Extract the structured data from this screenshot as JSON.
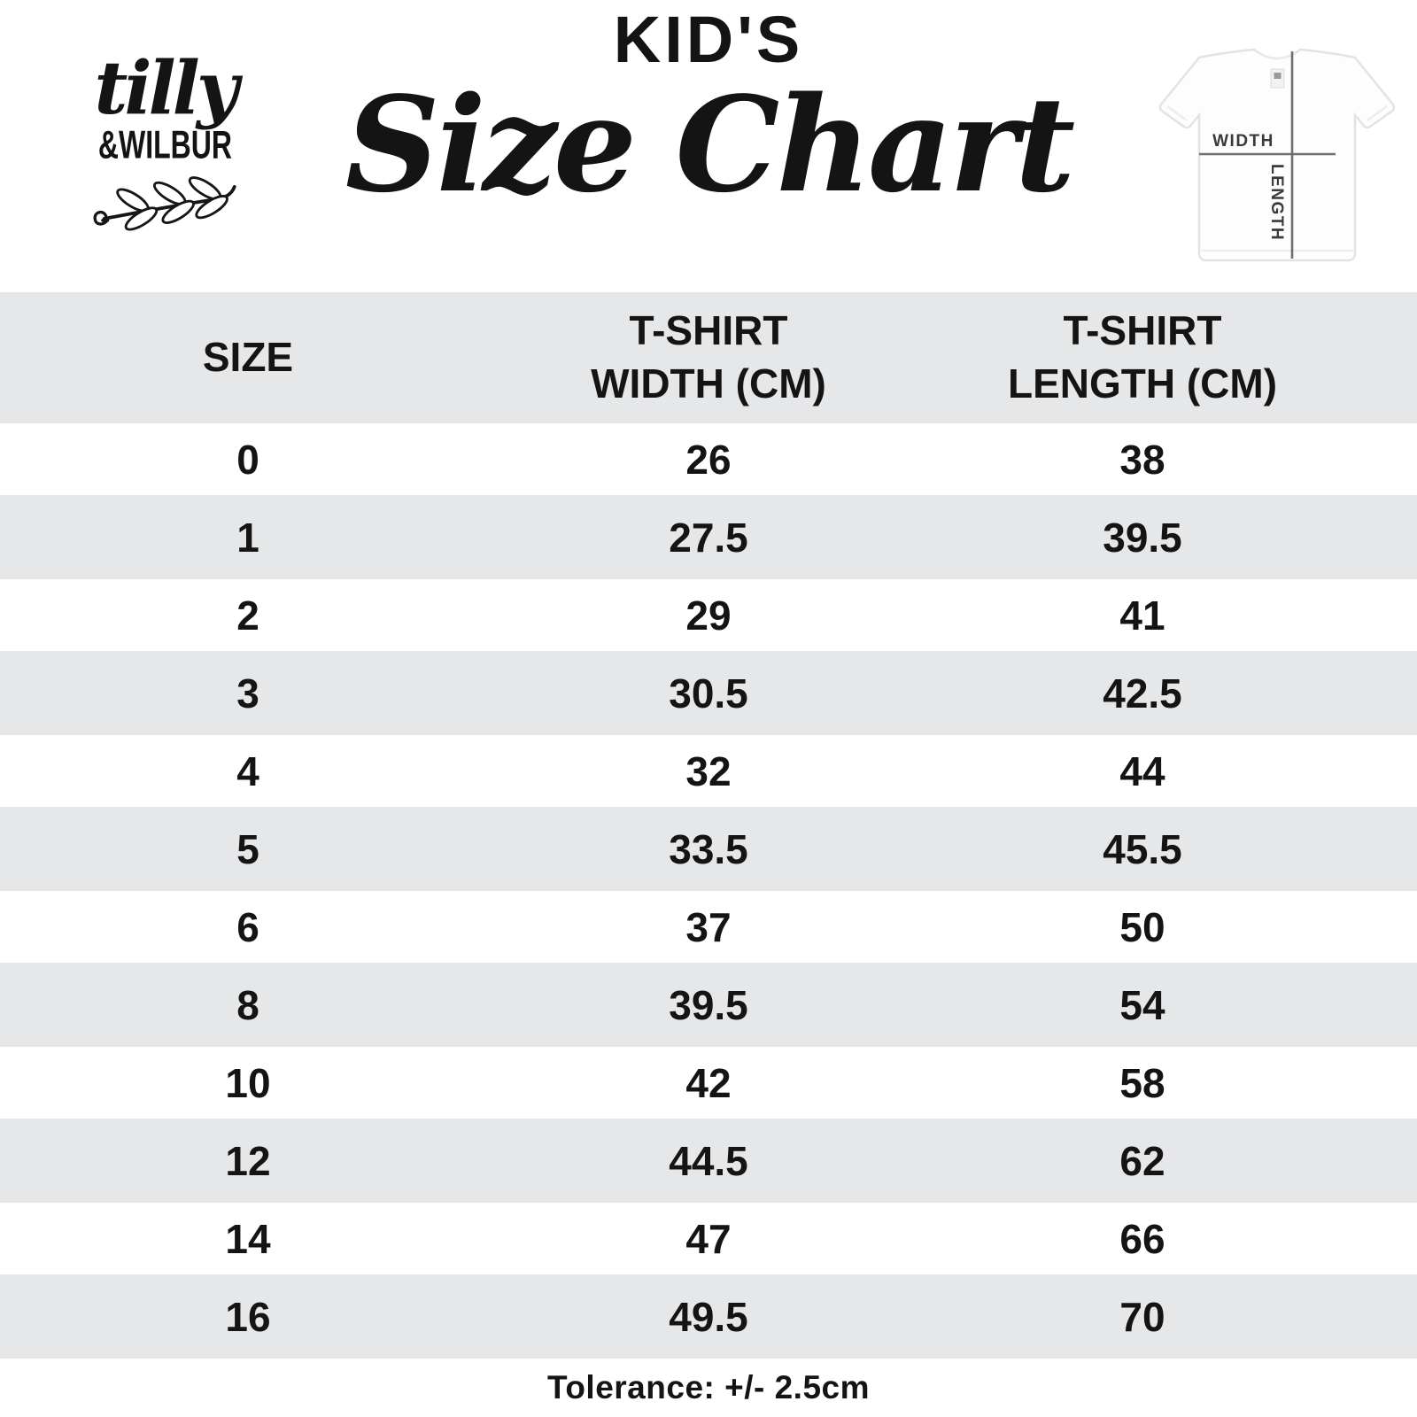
{
  "brand": {
    "script_name": "tilly",
    "caps_name": "&WILBUR"
  },
  "header": {
    "kicker": "KID'S",
    "title": "Size Chart"
  },
  "shirt_diagram": {
    "width_label": "WIDTH",
    "length_label": "LENGTH"
  },
  "table": {
    "columns": [
      "SIZE",
      "T-SHIRT\nWIDTH (CM)",
      "T-SHIRT\nLENGTH (CM)"
    ],
    "rows": [
      {
        "size": "0",
        "width_cm": "26",
        "length_cm": "38"
      },
      {
        "size": "1",
        "width_cm": "27.5",
        "length_cm": "39.5"
      },
      {
        "size": "2",
        "width_cm": "29",
        "length_cm": "41"
      },
      {
        "size": "3",
        "width_cm": "30.5",
        "length_cm": "42.5"
      },
      {
        "size": "4",
        "width_cm": "32",
        "length_cm": "44"
      },
      {
        "size": "5",
        "width_cm": "33.5",
        "length_cm": "45.5"
      },
      {
        "size": "6",
        "width_cm": "37",
        "length_cm": "50"
      },
      {
        "size": "8",
        "width_cm": "39.5",
        "length_cm": "54"
      },
      {
        "size": "10",
        "width_cm": "42",
        "length_cm": "58"
      },
      {
        "size": "12",
        "width_cm": "44.5",
        "length_cm": "62"
      },
      {
        "size": "14",
        "width_cm": "47",
        "length_cm": "66"
      },
      {
        "size": "16",
        "width_cm": "49.5",
        "length_cm": "70"
      }
    ]
  },
  "footer": {
    "tolerance_note": "Tolerance: +/- 2.5cm"
  },
  "colors": {
    "stripe": "#e6e7e8",
    "ink": "#141414",
    "diagram_line": "#6f6f6f",
    "diagram_label": "#3a3a3a"
  }
}
